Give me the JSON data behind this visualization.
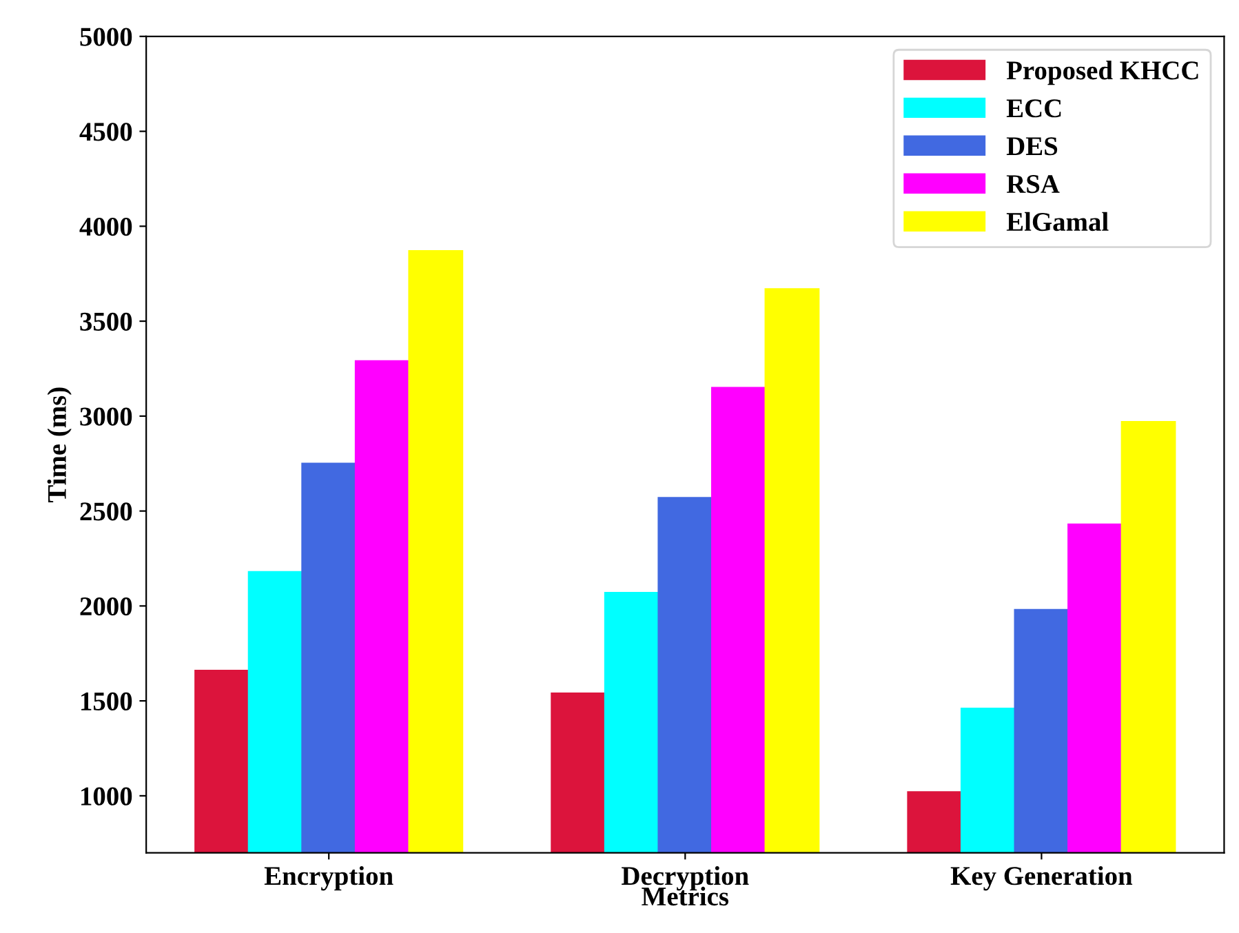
{
  "chart_data": {
    "type": "bar",
    "xlabel": "Metrics",
    "ylabel": "Time (ms)",
    "categories": [
      "Encryption",
      "Decryption",
      "Key Generation"
    ],
    "series": [
      {
        "name": "Proposed KHCC",
        "color": "#dc143c",
        "values": [
          1660,
          1540,
          1020
        ]
      },
      {
        "name": "ECC",
        "color": "#00ffff",
        "values": [
          2180,
          2070,
          1460
        ]
      },
      {
        "name": "DES",
        "color": "#4169e1",
        "values": [
          2750,
          2570,
          1980
        ]
      },
      {
        "name": "RSA",
        "color": "#ff00ff",
        "values": [
          3290,
          3150,
          2430
        ]
      },
      {
        "name": "ElGamal",
        "color": "#ffff00",
        "values": [
          3870,
          3670,
          2970
        ]
      }
    ],
    "ylim": [
      700,
      5000
    ],
    "yticks": [
      1000,
      1500,
      2000,
      2500,
      3000,
      3500,
      4000,
      4500,
      5000
    ],
    "legend": "top right",
    "grid": false
  }
}
